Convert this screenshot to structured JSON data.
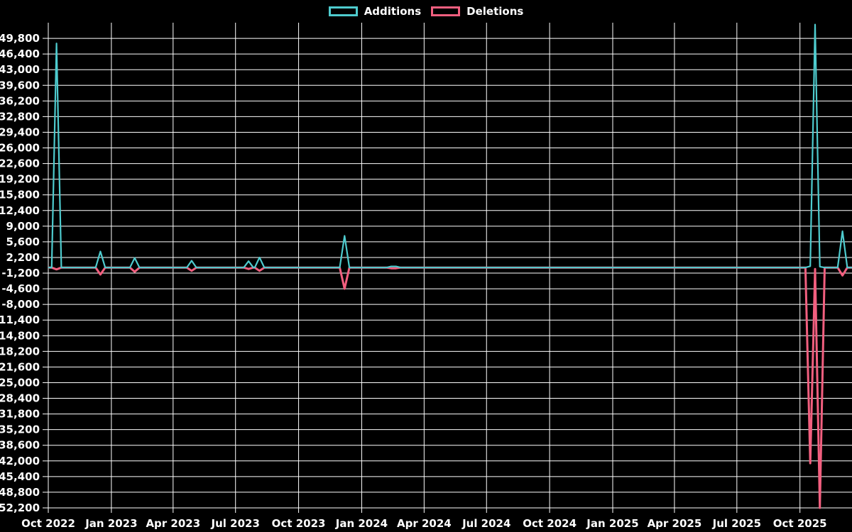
{
  "legend": {
    "items": [
      {
        "label": "Additions"
      },
      {
        "label": "Deletions"
      }
    ]
  },
  "chart_data": {
    "type": "line",
    "title": "",
    "background_color": "#000000",
    "grid_color": "#ffffff",
    "text_color": "#ffffff",
    "legend_position": "top-center",
    "grid": "on",
    "series": [
      {
        "key": "additions",
        "name": "Additions",
        "color": "#4ecbce"
      },
      {
        "key": "deletions",
        "name": "Deletions",
        "color": "#f25f7f"
      }
    ],
    "x_axis": {
      "tick_labels": [
        "Oct 2022",
        "Jan 2023",
        "Apr 2023",
        "Jul 2023",
        "Oct 2023",
        "Jan 2024",
        "Apr 2024",
        "Jul 2024",
        "Oct 2024",
        "Jan 2025",
        "Apr 2025",
        "Jul 2025",
        "Oct 2025"
      ],
      "tick_dates": [
        "2022-10-01",
        "2023-01-01",
        "2023-04-01",
        "2023-07-01",
        "2023-10-01",
        "2024-01-01",
        "2024-04-01",
        "2024-07-01",
        "2024-10-01",
        "2025-01-01",
        "2025-04-01",
        "2025-07-01",
        "2025-10-01"
      ],
      "range_end_date": "2025-12-14"
    },
    "y_axis": {
      "min": -52200,
      "max": 53200,
      "tick_step": 3400,
      "tick_values": [
        49800,
        46400,
        43000,
        39600,
        36200,
        32800,
        29400,
        26000,
        22600,
        19200,
        15800,
        12400,
        9000,
        5600,
        2200,
        -1200,
        -4600,
        -8000,
        -11400,
        -14800,
        -18200,
        -21600,
        -25000,
        -28400,
        -31800,
        -35200,
        -38600,
        -42000,
        -45400,
        -48800,
        -52200
      ],
      "tick_labels": [
        "49,800",
        "46,400",
        "43,000",
        "39,600",
        "36,200",
        "32,800",
        "29,400",
        "26,000",
        "22,600",
        "19,200",
        "15,800",
        "12,400",
        "9,000",
        "5,600",
        "2,200",
        "-1,200",
        "-4,600",
        "-8,000",
        "-11,400",
        "-14,800",
        "-18,200",
        "-21,600",
        "-25,000",
        "-28,400",
        "-31,800",
        "-35,200",
        "-38,600",
        "-42,000",
        "-45,400",
        "-48,800",
        "-52,200"
      ]
    },
    "all_other_weeks": {
      "additions": 0,
      "deletions": 0
    },
    "notable_weeks": [
      {
        "date": "2022-10-13",
        "additions": 48700,
        "deletions": -400
      },
      {
        "date": "2022-12-16",
        "additions": 3500,
        "deletions": -1500
      },
      {
        "date": "2023-02-04",
        "additions": 2100,
        "deletions": -900
      },
      {
        "date": "2023-04-28",
        "additions": 1500,
        "deletions": -700
      },
      {
        "date": "2023-07-20",
        "additions": 1400,
        "deletions": -300
      },
      {
        "date": "2023-08-05",
        "additions": 2200,
        "deletions": -700
      },
      {
        "date": "2023-12-07",
        "additions": 6900,
        "deletions": -4600
      },
      {
        "date": "2024-02-13",
        "additions": 250,
        "deletions": -150
      },
      {
        "date": "2024-02-20",
        "additions": 250,
        "deletions": -150
      },
      {
        "date": "2025-10-16",
        "additions": 300,
        "deletions": -42500
      },
      {
        "date": "2025-10-23",
        "additions": 52800,
        "deletions": -300
      },
      {
        "date": "2025-10-30",
        "additions": 200,
        "deletions": -52200
      },
      {
        "date": "2025-12-02",
        "additions": 7900,
        "deletions": -1700
      }
    ]
  }
}
